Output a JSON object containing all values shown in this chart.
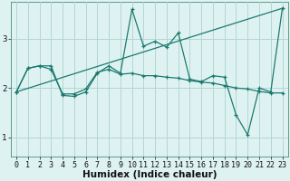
{
  "bg_color": "#dff2f2",
  "grid_color": "#aed8d8",
  "line_color": "#1a7a6e",
  "xlabel": "Humidex (Indice chaleur)",
  "xlabel_fontsize": 7.5,
  "tick_fontsize": 6,
  "ylim": [
    0.6,
    3.75
  ],
  "xlim": [
    -0.5,
    23.5
  ],
  "yticks": [
    1,
    2,
    3
  ],
  "xticks": [
    0,
    1,
    2,
    3,
    4,
    5,
    6,
    7,
    8,
    9,
    10,
    11,
    12,
    13,
    14,
    15,
    16,
    17,
    18,
    19,
    20,
    21,
    22,
    23
  ],
  "series1_x": [
    0,
    1,
    2,
    3,
    4,
    5,
    6,
    7,
    8,
    9,
    10,
    11,
    12,
    13,
    14,
    15,
    16,
    17,
    18,
    19,
    20,
    21,
    22,
    23
  ],
  "series1_y": [
    1.92,
    2.4,
    2.45,
    2.45,
    1.85,
    1.83,
    1.92,
    2.3,
    2.45,
    2.3,
    3.6,
    2.85,
    2.95,
    2.83,
    3.12,
    2.18,
    2.13,
    2.25,
    2.22,
    1.45,
    1.05,
    2.0,
    1.92,
    3.62
  ],
  "series2_x": [
    0,
    1,
    2,
    3,
    4,
    5,
    6,
    7,
    8,
    9,
    10,
    11,
    12,
    13,
    14,
    15,
    16,
    17,
    18,
    19,
    20,
    21,
    22,
    23
  ],
  "series2_y": [
    1.92,
    2.4,
    2.45,
    2.38,
    1.88,
    1.88,
    1.98,
    2.32,
    2.38,
    2.28,
    2.3,
    2.25,
    2.25,
    2.22,
    2.2,
    2.15,
    2.12,
    2.1,
    2.05,
    2.0,
    1.98,
    1.93,
    1.9,
    1.9
  ],
  "series3_x": [
    0,
    23
  ],
  "series3_y": [
    1.92,
    3.62
  ]
}
